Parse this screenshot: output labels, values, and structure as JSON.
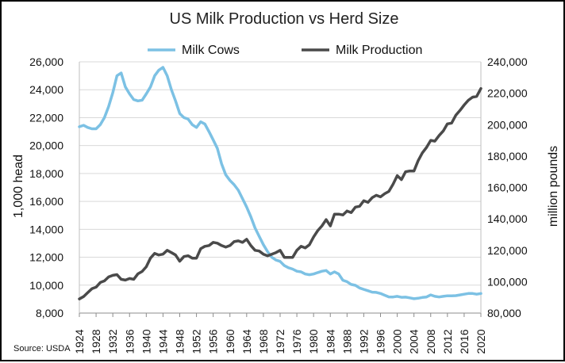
{
  "chart_data": {
    "type": "line",
    "title": "US Milk Production vs Herd Size",
    "source": "Source: USDA",
    "y_left_label": "1,000 head",
    "y_right_label": "million pounds",
    "y_left_lim": [
      8000,
      26000
    ],
    "y_right_lim": [
      80000,
      240000
    ],
    "y_left_ticks": [
      "8,000",
      "10,000",
      "12,000",
      "14,000",
      "16,000",
      "18,000",
      "20,000",
      "22,000",
      "24,000",
      "26,000"
    ],
    "y_right_ticks": [
      "80,000",
      "100,000",
      "120,000",
      "140,000",
      "160,000",
      "180,000",
      "200,000",
      "220,000",
      "240,000"
    ],
    "x_ticks": [
      "1924",
      "1928",
      "1932",
      "1936",
      "1940",
      "1944",
      "1948",
      "1952",
      "1956",
      "1960",
      "1964",
      "1968",
      "1972",
      "1976",
      "1980",
      "1984",
      "1988",
      "1992",
      "1996",
      "2000",
      "2004",
      "2008",
      "2012",
      "2016",
      "2020"
    ],
    "legend_position": "top",
    "grid": "horizontal",
    "series": [
      {
        "name": "Milk Cows",
        "axis": "left",
        "color": "#7cc1e4",
        "x": [
          1924,
          1925,
          1926,
          1927,
          1928,
          1929,
          1930,
          1931,
          1932,
          1933,
          1934,
          1935,
          1936,
          1937,
          1938,
          1939,
          1940,
          1941,
          1942,
          1943,
          1944,
          1945,
          1946,
          1947,
          1948,
          1949,
          1950,
          1951,
          1952,
          1953,
          1954,
          1955,
          1956,
          1957,
          1958,
          1959,
          1960,
          1961,
          1962,
          1963,
          1964,
          1965,
          1966,
          1967,
          1968,
          1969,
          1970,
          1971,
          1972,
          1973,
          1974,
          1975,
          1976,
          1977,
          1978,
          1979,
          1980,
          1981,
          1982,
          1983,
          1984,
          1985,
          1986,
          1987,
          1988,
          1989,
          1990,
          1991,
          1992,
          1993,
          1994,
          1995,
          1996,
          1997,
          1998,
          1999,
          2000,
          2001,
          2002,
          2003,
          2004,
          2005,
          2006,
          2007,
          2008,
          2009,
          2010,
          2011,
          2012,
          2013,
          2014,
          2015,
          2016,
          2017,
          2018,
          2019,
          2020
        ],
        "values": [
          21350,
          21450,
          21300,
          21200,
          21200,
          21500,
          22000,
          22800,
          23800,
          25000,
          25200,
          24200,
          23700,
          23300,
          23200,
          23250,
          23700,
          24200,
          25000,
          25400,
          25600,
          25000,
          24000,
          23200,
          22300,
          22000,
          21900,
          21500,
          21300,
          21700,
          21550,
          21000,
          20400,
          19800,
          18700,
          17900,
          17500,
          17200,
          16800,
          16200,
          15600,
          14900,
          14100,
          13500,
          12900,
          12400,
          12000,
          11800,
          11700,
          11400,
          11250,
          11150,
          11000,
          10950,
          10800,
          10750,
          10800,
          10900,
          11000,
          11050,
          10800,
          10950,
          10800,
          10350,
          10250,
          10050,
          9990,
          9800,
          9700,
          9600,
          9500,
          9480,
          9400,
          9280,
          9160,
          9150,
          9200,
          9130,
          9140,
          9090,
          9030,
          9060,
          9120,
          9150,
          9300,
          9200,
          9150,
          9200,
          9240,
          9230,
          9250,
          9300,
          9350,
          9400,
          9400,
          9350,
          9400
        ]
      },
      {
        "name": "Milk Production",
        "axis": "right",
        "color": "#4a4a4a",
        "x": [
          1924,
          1925,
          1926,
          1927,
          1928,
          1929,
          1930,
          1931,
          1932,
          1933,
          1934,
          1935,
          1936,
          1937,
          1938,
          1939,
          1940,
          1941,
          1942,
          1943,
          1944,
          1945,
          1946,
          1947,
          1948,
          1949,
          1950,
          1951,
          1952,
          1953,
          1954,
          1955,
          1956,
          1957,
          1958,
          1959,
          1960,
          1961,
          1962,
          1963,
          1964,
          1965,
          1966,
          1967,
          1968,
          1969,
          1970,
          1971,
          1972,
          1973,
          1974,
          1975,
          1976,
          1977,
          1978,
          1979,
          1980,
          1981,
          1982,
          1983,
          1984,
          1985,
          1986,
          1987,
          1988,
          1989,
          1990,
          1991,
          1992,
          1993,
          1994,
          1995,
          1996,
          1997,
          1998,
          1999,
          2000,
          2001,
          2002,
          2003,
          2004,
          2005,
          2006,
          2007,
          2008,
          2009,
          2010,
          2011,
          2012,
          2013,
          2014,
          2015,
          2016,
          2017,
          2018,
          2019,
          2020
        ],
        "values": [
          89000,
          90500,
          93000,
          95500,
          96500,
          99500,
          100500,
          103000,
          104000,
          104500,
          101500,
          101000,
          102000,
          101500,
          105000,
          106500,
          109500,
          115000,
          118000,
          117000,
          117500,
          120000,
          118500,
          117000,
          113000,
          116000,
          116500,
          115000,
          115000,
          121000,
          122500,
          123000,
          125000,
          124500,
          123000,
          122000,
          123000,
          125500,
          126000,
          125000,
          127000,
          123000,
          120000,
          119500,
          117500,
          116500,
          117500,
          118500,
          120000,
          115500,
          115500,
          115500,
          120000,
          122500,
          121500,
          123500,
          128500,
          132500,
          135500,
          139500,
          135500,
          143000,
          143000,
          142500,
          145000,
          144000,
          147500,
          148000,
          151500,
          150500,
          153500,
          155000,
          154000,
          156000,
          157500,
          162000,
          167500,
          165000,
          170000,
          170500,
          170500,
          177000,
          182000,
          185500,
          190000,
          189500,
          193000,
          196000,
          200500,
          201000,
          206000,
          209000,
          212500,
          215500,
          217500,
          218000,
          223000
        ]
      }
    ]
  }
}
